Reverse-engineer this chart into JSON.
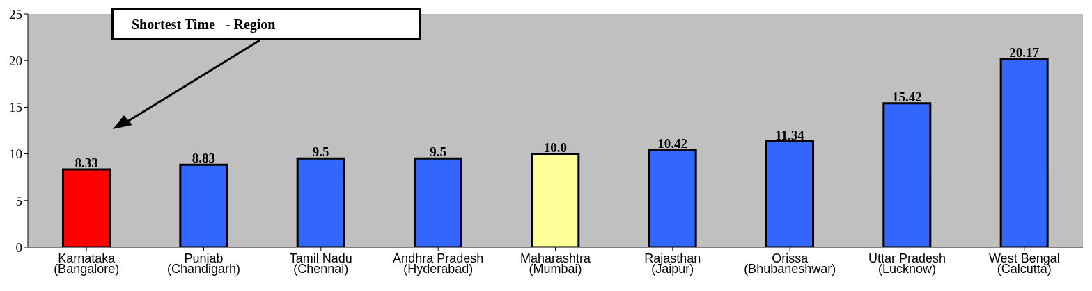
{
  "chart_data": {
    "type": "bar",
    "categories": [
      "Karnataka\n(Bangalore)",
      "Punjab\n(Chandigarh)",
      "Tamil Nadu\n(Chennai)",
      "Andhra Pradesh\n(Hyderabad)",
      "Maharashtra\n(Mumbai)",
      "Rajasthan\n(Jaipur)",
      "Orissa\n(Bhubaneshwar)",
      "Uttar Pradesh\n(Lucknow)",
      "West Bengal\n(Calcutta)"
    ],
    "values": [
      8.33,
      8.83,
      9.5,
      9.5,
      10.0,
      10.42,
      11.34,
      15.42,
      20.17
    ],
    "value_labels": [
      "8.33",
      "8.83",
      "9.5",
      "9.5",
      "10.0",
      "10.42",
      "11.34",
      "15.42",
      "20.17"
    ],
    "colors": [
      "#ff0000",
      "#3366ff",
      "#3366ff",
      "#3366ff",
      "#ffff99",
      "#3366ff",
      "#3366ff",
      "#3366ff",
      "#3366ff"
    ],
    "ylim": [
      0,
      25
    ],
    "yticks": [
      0,
      5,
      10,
      15,
      20,
      25
    ],
    "annotations": [
      "Shortest Time   - Region"
    ]
  }
}
